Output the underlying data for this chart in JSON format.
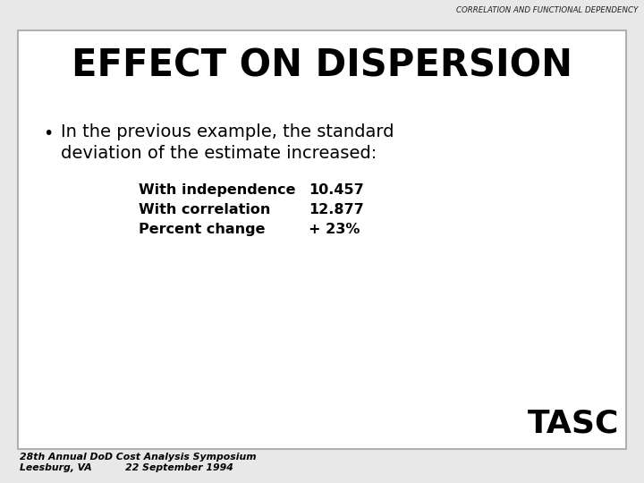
{
  "header_text": "CORRELATION AND FUNCTIONAL DEPENDENCY",
  "title": "EFFECT ON DISPERSION",
  "bullet_line1": "In the previous example, the standard",
  "bullet_line2": "deviation of the estimate increased:",
  "table_rows": [
    {
      "label": "With independence",
      "value": "10.457"
    },
    {
      "label": "With correlation",
      "value": "12.877"
    },
    {
      "label": "Percent change",
      "value": "+ 23%"
    }
  ],
  "footer_left1": "28th Annual DoD Cost Analysis Symposium",
  "footer_left2": "Leesburg, VA          22 September 1994",
  "tasc_text": "TASC",
  "bg_color": "#e8e8e8",
  "box_color": "#ffffff",
  "border_color": "#b0b0b0",
  "text_color": "#000000",
  "header_color": "#222222"
}
